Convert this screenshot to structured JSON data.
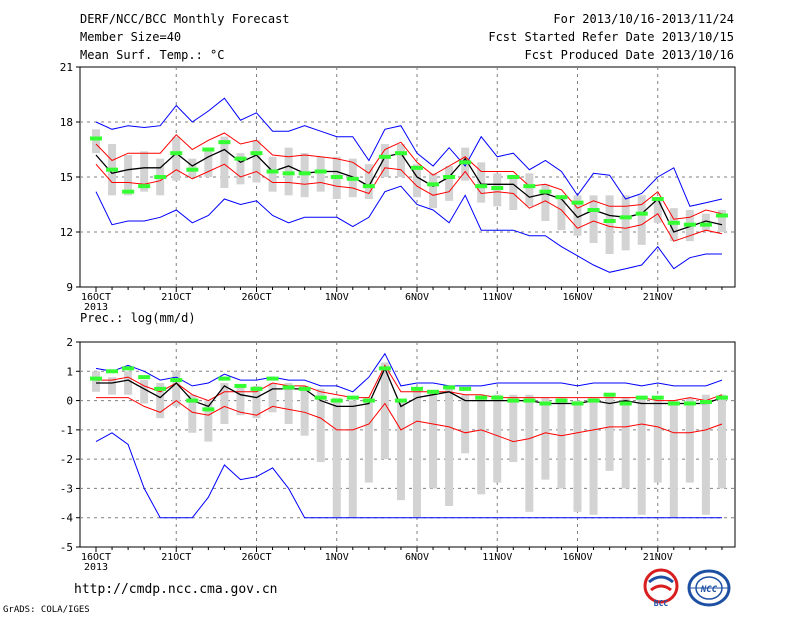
{
  "header": {
    "title": "DERF/NCC/BCC Monthly Forecast",
    "member_size": "Member Size=40",
    "variable": "Mean Surf. Temp.: °C",
    "period": "For 2013/10/16-2013/11/24",
    "fcst_started": "Fcst Started Refer Date 2013/10/15",
    "fcst_produced": "Fcst Produced Date 2013/10/16"
  },
  "footer": {
    "url": "http://cmdp.ncc.cma.gov.cn",
    "credit": "GrADS: COLA/IGES",
    "logo_bcc": "BCC",
    "logo_ncc": "NCC"
  },
  "colors": {
    "max_min": "#0000ff",
    "spread": "#ff0000",
    "mean": "#000000",
    "box": "#d3d3d3",
    "obs": "#33ff33"
  },
  "chart_data": [
    {
      "type": "line",
      "title": "Mean Surf. Temp.: °C",
      "x_tick_labels": [
        "16OCT",
        "21OCT",
        "26OCT",
        "1NOV",
        "6NOV",
        "11NOV",
        "16NOV",
        "21NOV"
      ],
      "x_year_label": "2013",
      "ylim": [
        9,
        21
      ],
      "y_ticks": [
        "9",
        "12",
        "15",
        "18",
        "21"
      ],
      "grid": true,
      "series": [
        {
          "values": [
            18.0,
            17.6,
            17.8,
            17.7,
            17.8,
            18.9,
            18.0,
            18.6,
            19.3,
            18.1,
            18.5,
            17.5,
            17.5,
            17.8,
            17.5,
            17.2,
            17.2,
            15.9,
            17.6,
            17.8,
            16.3,
            15.6,
            16.6,
            15.6,
            17.2,
            16.1,
            16.3,
            15.4,
            15.9,
            15.3,
            14.0,
            15.2,
            15.1,
            13.8,
            14.1,
            15.0,
            15.5,
            13.4,
            13.6,
            13.8
          ]
        },
        {
          "values": [
            16.8,
            15.9,
            16.3,
            16.3,
            16.3,
            17.3,
            16.5,
            17.0,
            17.4,
            16.8,
            17.0,
            16.2,
            16.1,
            16.2,
            16.1,
            16.0,
            15.8,
            15.2,
            16.5,
            16.9,
            15.8,
            15.1,
            15.6,
            16.1,
            15.3,
            15.3,
            15.3,
            14.5,
            14.6,
            14.3,
            13.3,
            13.7,
            13.4,
            13.4,
            13.5,
            14.2,
            12.7,
            12.8,
            13.2,
            13.0
          ]
        },
        {
          "values": [
            16.2,
            15.2,
            15.4,
            15.5,
            15.5,
            16.3,
            15.6,
            16.1,
            16.5,
            15.8,
            16.2,
            15.3,
            15.6,
            15.2,
            15.3,
            15.3,
            15.0,
            14.5,
            16.1,
            16.3,
            15.0,
            14.5,
            15.0,
            16.0,
            14.6,
            14.6,
            14.6,
            13.9,
            14.1,
            13.8,
            12.8,
            13.2,
            12.9,
            12.8,
            13.0,
            13.8,
            12.0,
            12.3,
            12.6,
            12.4
          ]
        },
        {
          "values": [
            15.7,
            14.7,
            14.7,
            14.6,
            14.8,
            15.4,
            14.9,
            15.3,
            15.7,
            15.0,
            15.3,
            14.7,
            14.7,
            14.6,
            14.7,
            14.5,
            14.4,
            14.1,
            15.5,
            15.4,
            14.5,
            14.0,
            14.2,
            15.3,
            14.1,
            14.2,
            14.1,
            13.3,
            13.7,
            13.2,
            12.2,
            12.6,
            12.3,
            12.2,
            12.4,
            13.0,
            11.5,
            11.8,
            12.1,
            11.9
          ]
        },
        {
          "values": [
            14.2,
            12.4,
            12.6,
            12.6,
            12.8,
            13.2,
            12.5,
            12.9,
            13.8,
            13.5,
            13.7,
            12.9,
            12.5,
            12.8,
            12.8,
            12.8,
            12.3,
            12.8,
            14.2,
            14.5,
            13.5,
            13.2,
            12.5,
            14.0,
            12.1,
            12.1,
            12.1,
            11.8,
            11.8,
            11.2,
            10.7,
            10.2,
            9.8,
            10.0,
            10.2,
            11.2,
            10.0,
            10.6,
            10.8,
            10.8
          ]
        }
      ],
      "boxes": [
        [
          16.3,
          17.6
        ],
        [
          14.0,
          16.8
        ],
        [
          14.0,
          16.2
        ],
        [
          14.2,
          16.4
        ],
        [
          14.0,
          16.0
        ],
        [
          14.8,
          17.2
        ],
        [
          15.0,
          16.0
        ],
        [
          15.0,
          16.5
        ],
        [
          14.4,
          17.2
        ],
        [
          14.6,
          16.3
        ],
        [
          14.7,
          17.0
        ],
        [
          14.2,
          16.1
        ],
        [
          14.0,
          16.6
        ],
        [
          13.9,
          16.3
        ],
        [
          14.2,
          16.1
        ],
        [
          13.8,
          16.1
        ],
        [
          13.9,
          16.0
        ],
        [
          13.8,
          15.7
        ],
        [
          15.0,
          16.8
        ],
        [
          15.0,
          16.8
        ],
        [
          13.9,
          15.7
        ],
        [
          13.3,
          15.2
        ],
        [
          13.7,
          15.6
        ],
        [
          14.8,
          16.6
        ],
        [
          13.6,
          15.8
        ],
        [
          13.4,
          15.2
        ],
        [
          13.2,
          15.0
        ],
        [
          13.4,
          15.2
        ],
        [
          12.6,
          14.6
        ],
        [
          12.1,
          14.0
        ],
        [
          11.8,
          14.0
        ],
        [
          11.4,
          14.0
        ],
        [
          10.8,
          14.0
        ],
        [
          11.0,
          14.0
        ],
        [
          11.3,
          14.0
        ],
        [
          12.5,
          13.8
        ],
        [
          11.5,
          13.3
        ],
        [
          11.5,
          13.2
        ],
        [
          12.1,
          13.0
        ],
        [
          12.0,
          13.2
        ]
      ],
      "obs": [
        17.1,
        15.4,
        14.2,
        14.5,
        15.0,
        16.3,
        15.4,
        16.5,
        16.9,
        16.0,
        16.3,
        15.3,
        15.2,
        15.2,
        15.3,
        15.0,
        14.9,
        14.5,
        16.1,
        16.3,
        15.5,
        14.6,
        15.0,
        15.8,
        14.5,
        14.4,
        15.0,
        14.5,
        14.2,
        13.9,
        13.6,
        13.2,
        12.6,
        12.8,
        13.0,
        13.8,
        12.5,
        12.4,
        12.4,
        12.9
      ]
    },
    {
      "type": "line",
      "title": "Prec.: log(mm/d)",
      "x_tick_labels": [
        "16OCT",
        "21OCT",
        "26OCT",
        "1NOV",
        "6NOV",
        "11NOV",
        "16NOV",
        "21NOV"
      ],
      "x_year_label": "2013",
      "ylim": [
        -5,
        2
      ],
      "y_ticks": [
        "-5",
        "-4",
        "-3",
        "-2",
        "-1",
        "0",
        "1",
        "2"
      ],
      "grid": true,
      "series": [
        {
          "values": [
            1.1,
            1.0,
            1.2,
            1.0,
            0.7,
            0.8,
            0.5,
            0.6,
            0.9,
            0.7,
            0.7,
            0.8,
            0.7,
            0.7,
            0.5,
            0.5,
            0.3,
            0.8,
            1.6,
            0.5,
            0.6,
            0.6,
            0.5,
            0.5,
            0.5,
            0.6,
            0.6,
            0.6,
            0.6,
            0.6,
            0.5,
            0.6,
            0.6,
            0.6,
            0.5,
            0.6,
            0.5,
            0.5,
            0.5,
            0.7
          ]
        },
        {
          "values": [
            0.7,
            0.7,
            0.8,
            0.5,
            0.3,
            0.6,
            0.2,
            0.0,
            0.3,
            0.3,
            0.3,
            0.6,
            0.5,
            0.5,
            0.3,
            0.2,
            0.1,
            0.1,
            1.2,
            0.3,
            0.3,
            0.3,
            0.3,
            0.2,
            0.2,
            0.1,
            0.1,
            0.1,
            0.1,
            0.1,
            0.1,
            0.1,
            0.1,
            0.1,
            0.1,
            0.0,
            0.0,
            0.1,
            0.0,
            0.2
          ]
        },
        {
          "values": [
            0.6,
            0.6,
            0.7,
            0.4,
            0.1,
            0.6,
            0.0,
            -0.2,
            0.5,
            0.2,
            0.1,
            0.4,
            0.4,
            0.4,
            0.0,
            -0.2,
            -0.2,
            -0.1,
            1.1,
            -0.2,
            0.1,
            0.2,
            0.3,
            0.0,
            0.0,
            0.0,
            0.0,
            0.0,
            -0.1,
            -0.1,
            -0.1,
            0.0,
            -0.1,
            0.0,
            -0.1,
            -0.1,
            -0.1,
            -0.1,
            -0.1,
            0.1
          ]
        },
        {
          "values": [
            0.1,
            0.1,
            0.1,
            -0.2,
            -0.4,
            0.0,
            -0.4,
            -0.5,
            -0.2,
            -0.4,
            -0.5,
            -0.2,
            -0.3,
            -0.4,
            -0.6,
            -1.0,
            -1.0,
            -0.8,
            -0.1,
            -1.0,
            -0.7,
            -0.8,
            -0.9,
            -1.1,
            -1.0,
            -1.2,
            -1.4,
            -1.3,
            -1.1,
            -1.2,
            -1.1,
            -1.0,
            -0.9,
            -0.9,
            -0.8,
            -0.9,
            -1.1,
            -1.1,
            -1.0,
            -0.8
          ]
        },
        {
          "values": [
            -1.4,
            -1.1,
            -1.5,
            -3.0,
            -4.0,
            -4.0,
            -4.0,
            -3.3,
            -2.2,
            -2.7,
            -2.6,
            -2.3,
            -3.0,
            -4.0,
            -4.0,
            -4.0,
            -4.0,
            -4.0,
            -4.0,
            -4.0,
            -4.0,
            -4.0,
            -4.0,
            -4.0,
            -4.0,
            -4.0,
            -4.0,
            -4.0,
            -4.0,
            -4.0,
            -4.0,
            -4.0,
            -4.0,
            -4.0,
            -4.0,
            -4.0,
            -4.0,
            -4.0,
            -4.0,
            -4.0
          ]
        }
      ],
      "boxes": [
        [
          0.3,
          1.0
        ],
        [
          0.2,
          0.8
        ],
        [
          0.2,
          1.0
        ],
        [
          -0.1,
          0.7
        ],
        [
          -0.6,
          0.6
        ],
        [
          -0.2,
          1.0
        ],
        [
          -1.1,
          0.2
        ],
        [
          -1.4,
          0.0
        ],
        [
          -0.8,
          0.6
        ],
        [
          -0.5,
          0.5
        ],
        [
          -0.6,
          0.5
        ],
        [
          -0.4,
          0.6
        ],
        [
          -0.8,
          0.6
        ],
        [
          -1.2,
          0.5
        ],
        [
          -2.1,
          0.4
        ],
        [
          -4.0,
          0.1
        ],
        [
          -4.0,
          0.0
        ],
        [
          -2.8,
          0.1
        ],
        [
          -2.0,
          1.3
        ],
        [
          -3.4,
          0.0
        ],
        [
          -4.0,
          0.4
        ],
        [
          -3.0,
          0.3
        ],
        [
          -3.6,
          0.4
        ],
        [
          -1.8,
          0.2
        ],
        [
          -3.2,
          0.1
        ],
        [
          -2.8,
          0.2
        ],
        [
          -2.1,
          0.2
        ],
        [
          -3.8,
          0.2
        ],
        [
          -2.7,
          0.1
        ],
        [
          -3.0,
          0.1
        ],
        [
          -3.8,
          0.0
        ],
        [
          -3.9,
          0.1
        ],
        [
          -2.4,
          0.2
        ],
        [
          -3.0,
          0.1
        ],
        [
          -3.9,
          0.1
        ],
        [
          -2.8,
          0.1
        ],
        [
          -4.0,
          0.0
        ],
        [
          -2.8,
          0.1
        ],
        [
          -3.9,
          0.2
        ],
        [
          -3.0,
          0.2
        ]
      ],
      "obs": [
        0.75,
        1.0,
        1.1,
        0.8,
        0.4,
        0.7,
        0.0,
        -0.3,
        0.75,
        0.5,
        0.4,
        0.75,
        0.45,
        0.4,
        0.1,
        0.0,
        0.1,
        0.0,
        1.1,
        0.0,
        0.4,
        0.3,
        0.45,
        0.4,
        0.1,
        0.1,
        0.0,
        0.0,
        -0.1,
        0.0,
        -0.1,
        0.0,
        0.2,
        -0.1,
        0.1,
        0.1,
        -0.1,
        -0.1,
        -0.05,
        0.1
      ]
    }
  ]
}
